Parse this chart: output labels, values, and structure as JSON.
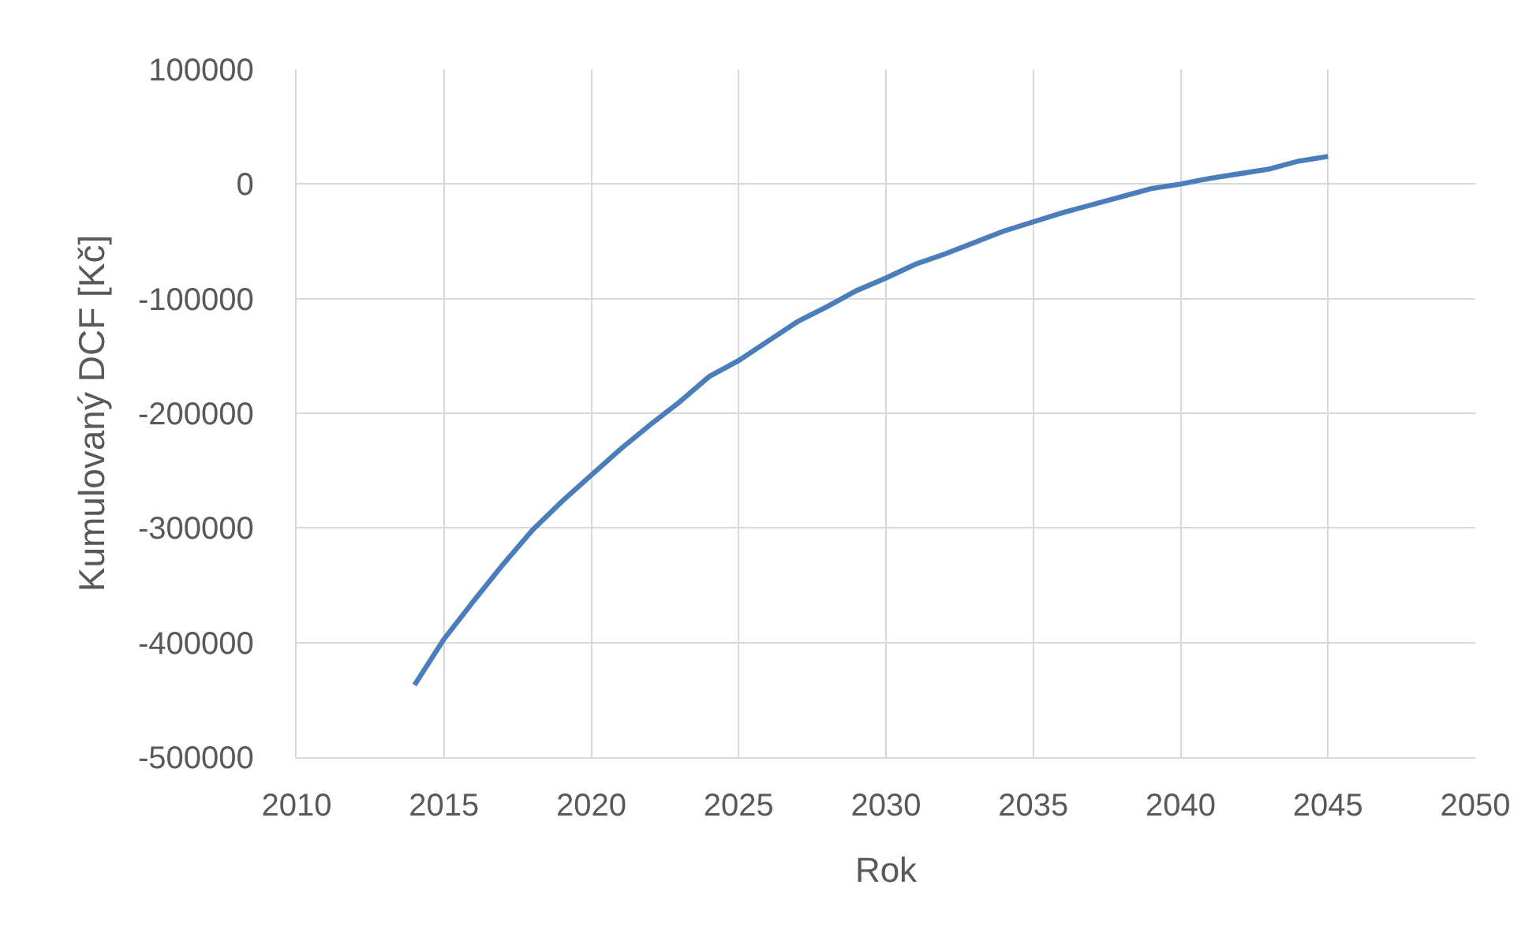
{
  "chart_data": {
    "type": "line",
    "xlabel": "Rok",
    "ylabel": "Kumulovaný DCF [Kč]",
    "x": [
      2014,
      2015,
      2016,
      2017,
      2018,
      2019,
      2020,
      2021,
      2022,
      2023,
      2024,
      2025,
      2026,
      2027,
      2028,
      2029,
      2030,
      2031,
      2032,
      2033,
      2034,
      2035,
      2036,
      2037,
      2038,
      2039,
      2040,
      2041,
      2042,
      2043,
      2044,
      2045
    ],
    "series": [
      {
        "color": "#4a7ebb",
        "values": [
          -437000,
          -397000,
          -364000,
          -332000,
          -302000,
          -277000,
          -254000,
          -231000,
          -210000,
          -190000,
          -168000,
          -154000,
          -137000,
          -120000,
          -107000,
          -93000,
          -82000,
          -70000,
          -61000,
          -51000,
          -41000,
          -33000,
          -25000,
          -18000,
          -11000,
          -4000,
          0,
          5000,
          9000,
          13000,
          20000,
          24000
        ]
      }
    ],
    "xlim": [
      2010,
      2050
    ],
    "xticks": [
      2010,
      2015,
      2020,
      2025,
      2030,
      2035,
      2040,
      2045,
      2050
    ],
    "ylim": [
      -500000,
      100000
    ],
    "yticks": [
      -500000,
      -400000,
      -300000,
      -200000,
      -100000,
      0,
      100000
    ],
    "grid": true,
    "marker": "none",
    "line_style": "solid"
  }
}
